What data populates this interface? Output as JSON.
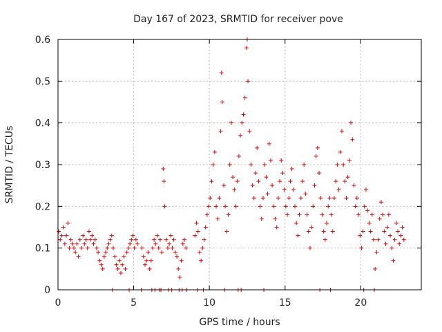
{
  "chart_data": {
    "type": "scatter",
    "title": "Day 167 of 2023, SRMTID for receiver pove",
    "xlabel": "GPS time / hours",
    "ylabel": "SRMTID / TECUs",
    "xlim": [
      0,
      24
    ],
    "ylim": [
      0,
      0.6
    ],
    "xticks": [
      0,
      5,
      10,
      15,
      20
    ],
    "yticks": [
      0,
      0.1,
      0.2,
      0.3,
      0.4,
      0.5,
      0.6
    ],
    "xtick_labels": [
      "0",
      "5",
      "10",
      "15",
      "20"
    ],
    "ytick_labels": [
      "0",
      "0.1",
      "0.2",
      "0.3",
      "0.4",
      "0.5",
      "0.6"
    ],
    "grid": true,
    "marker": "+",
    "color": "#e00000",
    "zero_points_x": [
      3.6,
      4.7,
      5.5,
      6.2,
      6.4,
      6.7,
      6.8,
      7.3,
      7.5,
      8.0,
      8.2,
      8.5,
      9.2,
      9.6,
      11.0,
      11.9,
      12.1,
      13.6,
      17.3,
      18.0,
      20.2,
      20.9
    ],
    "series": [
      {
        "name": "pove",
        "points": [
          [
            0.05,
            0.14
          ],
          [
            0.15,
            0.12
          ],
          [
            0.25,
            0.13
          ],
          [
            0.35,
            0.15
          ],
          [
            0.45,
            0.11
          ],
          [
            0.55,
            0.13
          ],
          [
            0.65,
            0.16
          ],
          [
            0.75,
            0.1
          ],
          [
            0.85,
            0.12
          ],
          [
            0.95,
            0.11
          ],
          [
            1.05,
            0.1
          ],
          [
            1.15,
            0.09
          ],
          [
            1.25,
            0.11
          ],
          [
            1.35,
            0.08
          ],
          [
            1.45,
            0.12
          ],
          [
            1.55,
            0.1
          ],
          [
            1.65,
            0.13
          ],
          [
            1.75,
            0.11
          ],
          [
            1.85,
            0.12
          ],
          [
            1.95,
            0.1
          ],
          [
            2.05,
            0.14
          ],
          [
            2.15,
            0.12
          ],
          [
            2.25,
            0.13
          ],
          [
            2.35,
            0.11
          ],
          [
            2.45,
            0.12
          ],
          [
            2.55,
            0.1
          ],
          [
            2.65,
            0.09
          ],
          [
            2.75,
            0.07
          ],
          [
            2.85,
            0.06
          ],
          [
            2.95,
            0.05
          ],
          [
            3.05,
            0.08
          ],
          [
            3.15,
            0.09
          ],
          [
            3.25,
            0.1
          ],
          [
            3.35,
            0.11
          ],
          [
            3.45,
            0.12
          ],
          [
            3.55,
            0.13
          ],
          [
            3.65,
            0.1
          ],
          [
            3.75,
            0.08
          ],
          [
            3.85,
            0.06
          ],
          [
            3.95,
            0.05
          ],
          [
            4.05,
            0.07
          ],
          [
            4.15,
            0.04
          ],
          [
            4.25,
            0.06
          ],
          [
            4.35,
            0.08
          ],
          [
            4.45,
            0.05
          ],
          [
            4.55,
            0.09
          ],
          [
            4.65,
            0.1
          ],
          [
            4.75,
            0.11
          ],
          [
            4.85,
            0.12
          ],
          [
            4.95,
            0.13
          ],
          [
            5.05,
            0.1
          ],
          [
            5.15,
            0.12
          ],
          [
            5.25,
            0.11
          ],
          [
            5.55,
            0.1
          ],
          [
            5.65,
            0.08
          ],
          [
            5.75,
            0.06
          ],
          [
            5.85,
            0.07
          ],
          [
            5.95,
            0.09
          ],
          [
            6.05,
            0.05
          ],
          [
            6.15,
            0.07
          ],
          [
            6.25,
            0.1
          ],
          [
            6.35,
            0.12
          ],
          [
            6.45,
            0.11
          ],
          [
            6.55,
            0.13
          ],
          [
            6.65,
            0.1
          ],
          [
            6.75,
            0.12
          ],
          [
            6.85,
            0.09
          ],
          [
            6.95,
            0.29
          ],
          [
            7.0,
            0.26
          ],
          [
            7.05,
            0.2
          ],
          [
            7.15,
            0.12
          ],
          [
            7.25,
            0.1
          ],
          [
            7.35,
            0.11
          ],
          [
            7.45,
            0.13
          ],
          [
            7.55,
            0.1
          ],
          [
            7.65,
            0.12
          ],
          [
            7.75,
            0.09
          ],
          [
            7.85,
            0.08
          ],
          [
            7.95,
            0.05
          ],
          [
            8.05,
            0.03
          ],
          [
            8.15,
            0.07
          ],
          [
            8.25,
            0.11
          ],
          [
            8.35,
            0.12
          ],
          [
            8.45,
            0.1
          ],
          [
            9.05,
            0.13
          ],
          [
            9.15,
            0.16
          ],
          [
            9.25,
            0.14
          ],
          [
            9.35,
            0.09
          ],
          [
            9.45,
            0.07
          ],
          [
            9.55,
            0.1
          ],
          [
            9.65,
            0.12
          ],
          [
            9.75,
            0.15
          ],
          [
            9.85,
            0.18
          ],
          [
            9.95,
            0.2
          ],
          [
            10.05,
            0.22
          ],
          [
            10.15,
            0.26
          ],
          [
            10.25,
            0.3
          ],
          [
            10.35,
            0.33
          ],
          [
            10.45,
            0.2
          ],
          [
            10.55,
            0.17
          ],
          [
            10.65,
            0.22
          ],
          [
            10.75,
            0.38
          ],
          [
            10.8,
            0.52
          ],
          [
            10.85,
            0.45
          ],
          [
            10.95,
            0.25
          ],
          [
            11.05,
            0.2
          ],
          [
            11.15,
            0.14
          ],
          [
            11.25,
            0.18
          ],
          [
            11.35,
            0.3
          ],
          [
            11.45,
            0.4
          ],
          [
            11.55,
            0.27
          ],
          [
            11.65,
            0.24
          ],
          [
            11.75,
            0.2
          ],
          [
            11.85,
            0.26
          ],
          [
            11.95,
            0.32
          ],
          [
            12.05,
            0.37
          ],
          [
            12.15,
            0.4
          ],
          [
            12.25,
            0.42
          ],
          [
            12.35,
            0.46
          ],
          [
            12.45,
            0.58
          ],
          [
            12.5,
            0.6
          ],
          [
            12.55,
            0.5
          ],
          [
            12.65,
            0.38
          ],
          [
            12.75,
            0.3
          ],
          [
            12.85,
            0.25
          ],
          [
            12.95,
            0.22
          ],
          [
            13.05,
            0.28
          ],
          [
            13.15,
            0.34
          ],
          [
            13.25,
            0.26
          ],
          [
            13.35,
            0.2
          ],
          [
            13.45,
            0.17
          ],
          [
            13.55,
            0.22
          ],
          [
            13.65,
            0.3
          ],
          [
            13.75,
            0.27
          ],
          [
            13.85,
            0.23
          ],
          [
            13.95,
            0.35
          ],
          [
            14.05,
            0.31
          ],
          [
            14.15,
            0.25
          ],
          [
            14.25,
            0.2
          ],
          [
            14.35,
            0.17
          ],
          [
            14.45,
            0.15
          ],
          [
            14.55,
            0.22
          ],
          [
            14.65,
            0.26
          ],
          [
            14.75,
            0.31
          ],
          [
            14.85,
            0.28
          ],
          [
            14.95,
            0.24
          ],
          [
            15.05,
            0.2
          ],
          [
            15.15,
            0.18
          ],
          [
            15.25,
            0.22
          ],
          [
            15.35,
            0.26
          ],
          [
            15.45,
            0.29
          ],
          [
            15.55,
            0.24
          ],
          [
            15.65,
            0.2
          ],
          [
            15.75,
            0.16
          ],
          [
            15.85,
            0.13
          ],
          [
            15.95,
            0.18
          ],
          [
            16.05,
            0.22
          ],
          [
            16.15,
            0.26
          ],
          [
            16.25,
            0.3
          ],
          [
            16.35,
            0.23
          ],
          [
            16.45,
            0.18
          ],
          [
            16.55,
            0.14
          ],
          [
            16.65,
            0.1
          ],
          [
            16.75,
            0.15
          ],
          [
            16.85,
            0.2
          ],
          [
            16.95,
            0.25
          ],
          [
            17.05,
            0.32
          ],
          [
            17.15,
            0.34
          ],
          [
            17.25,
            0.28
          ],
          [
            17.35,
            0.22
          ],
          [
            17.45,
            0.18
          ],
          [
            17.55,
            0.14
          ],
          [
            17.65,
            0.12
          ],
          [
            17.75,
            0.16
          ],
          [
            17.85,
            0.2
          ],
          [
            17.95,
            0.22
          ],
          [
            18.05,
            0.18
          ],
          [
            18.15,
            0.14
          ],
          [
            18.25,
            0.22
          ],
          [
            18.35,
            0.26
          ],
          [
            18.45,
            0.3
          ],
          [
            18.55,
            0.24
          ],
          [
            18.65,
            0.33
          ],
          [
            18.75,
            0.38
          ],
          [
            18.85,
            0.3
          ],
          [
            18.95,
            0.26
          ],
          [
            19.05,
            0.22
          ],
          [
            19.15,
            0.27
          ],
          [
            19.25,
            0.31
          ],
          [
            19.35,
            0.4
          ],
          [
            19.45,
            0.36
          ],
          [
            19.55,
            0.25
          ],
          [
            19.65,
            0.2
          ],
          [
            19.75,
            0.22
          ],
          [
            19.85,
            0.18
          ],
          [
            19.95,
            0.13
          ],
          [
            20.05,
            0.1
          ],
          [
            20.15,
            0.14
          ],
          [
            20.25,
            0.2
          ],
          [
            20.35,
            0.24
          ],
          [
            20.45,
            0.19
          ],
          [
            20.55,
            0.16
          ],
          [
            20.65,
            0.14
          ],
          [
            20.75,
            0.18
          ],
          [
            20.85,
            0.12
          ],
          [
            20.95,
            0.05
          ],
          [
            21.05,
            0.09
          ],
          [
            21.15,
            0.12
          ],
          [
            21.25,
            0.17
          ],
          [
            21.35,
            0.21
          ],
          [
            21.45,
            0.18
          ],
          [
            21.55,
            0.14
          ],
          [
            21.65,
            0.11
          ],
          [
            21.75,
            0.15
          ],
          [
            21.85,
            0.18
          ],
          [
            21.95,
            0.13
          ],
          [
            22.05,
            0.1
          ],
          [
            22.15,
            0.07
          ],
          [
            22.25,
            0.12
          ],
          [
            22.35,
            0.16
          ],
          [
            22.45,
            0.14
          ],
          [
            22.55,
            0.11
          ],
          [
            22.65,
            0.13
          ],
          [
            22.75,
            0.15
          ],
          [
            22.85,
            0.12
          ]
        ]
      }
    ]
  }
}
